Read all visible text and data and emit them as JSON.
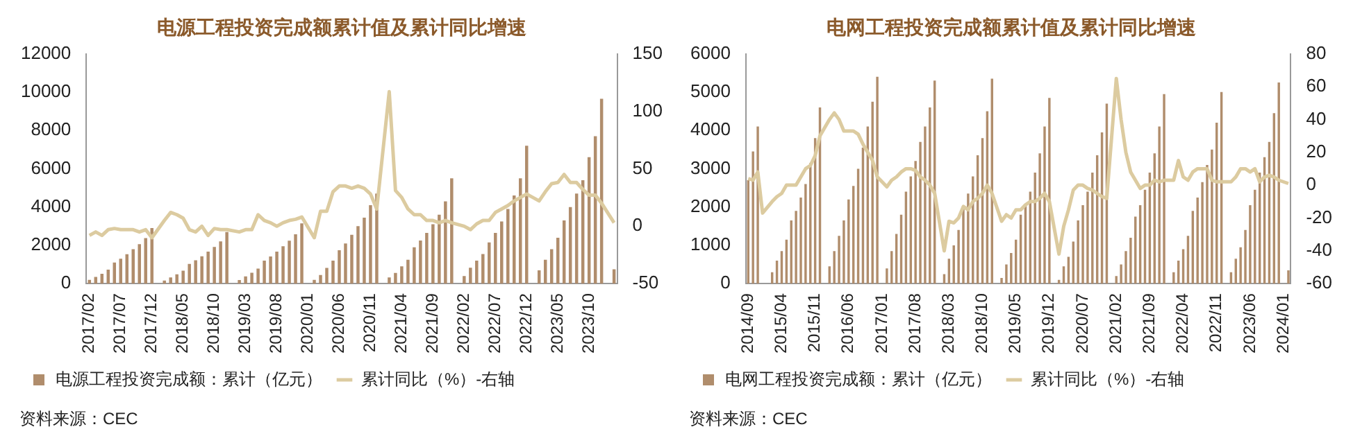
{
  "chart_data": [
    {
      "type": "bar",
      "title": "电源工程投资完成额累计值及累计同比增速",
      "legend": "bottom",
      "grid": false,
      "categories": [
        "2017/02",
        null,
        null,
        null,
        null,
        "2017/07",
        null,
        null,
        null,
        null,
        "2017/12",
        null,
        null,
        null,
        null,
        "2018/05",
        null,
        null,
        null,
        null,
        "2018/10",
        null,
        null,
        null,
        null,
        "2019/03",
        null,
        null,
        null,
        null,
        "2019/08",
        null,
        null,
        null,
        null,
        "2020/01",
        null,
        null,
        null,
        null,
        "2020/06",
        null,
        null,
        null,
        null,
        "2020/11",
        null,
        null,
        null,
        null,
        "2021/04",
        null,
        null,
        null,
        null,
        "2021/09",
        null,
        null,
        null,
        null,
        "2022/02",
        null,
        null,
        null,
        null,
        "2022/07",
        null,
        null,
        null,
        null,
        "2022/12",
        null,
        null,
        null,
        null,
        "2023/05",
        null,
        null,
        null,
        null,
        "2023/10",
        null,
        null,
        null,
        null
      ],
      "ylim": [
        0,
        12000
      ],
      "yticks": [
        0,
        2000,
        4000,
        6000,
        8000,
        10000,
        12000
      ],
      "y2lim": [
        -50,
        150
      ],
      "y2ticks": [
        -50,
        0,
        50,
        100,
        150
      ],
      "series": [
        {
          "name": "电源工程投资完成额：累计（亿元）",
          "color": "#b08d6c",
          "values": [
            200,
            350,
            520,
            730,
            1100,
            1300,
            1540,
            1800,
            2060,
            2380,
            2900,
            null,
            160,
            330,
            490,
            680,
            1030,
            1220,
            1430,
            1670,
            1920,
            2210,
            2700,
            null,
            190,
            380,
            570,
            790,
            1200,
            1420,
            1670,
            1950,
            2240,
            2580,
            3150,
            null,
            200,
            450,
            820,
            1200,
            1750,
            2100,
            2550,
            3000,
            3450,
            4100,
            4700,
            null,
            330,
            560,
            900,
            1250,
            1900,
            2250,
            2650,
            3100,
            3600,
            4300,
            5500,
            null,
            400,
            830,
            1200,
            1550,
            2150,
            2650,
            3250,
            3900,
            4600,
            5500,
            7200,
            null,
            700,
            1250,
            1800,
            2400,
            3300,
            4000,
            4700,
            5400,
            6600,
            7700,
            9650,
            null,
            750
          ]
        },
        {
          "name": "累计同比（%）-右轴",
          "type": "line",
          "axis": "y2",
          "color": "#dccba0",
          "marker": "none",
          "values": [
            -8,
            -5,
            -8,
            -3,
            -2,
            -3,
            -3,
            -3,
            -5,
            -3,
            -10,
            null,
            5,
            12,
            10,
            7,
            -3,
            -5,
            0,
            -8,
            -2,
            -3,
            -3,
            null,
            -5,
            -3,
            -3,
            10,
            5,
            3,
            0,
            3,
            5,
            6,
            8,
            null,
            -10,
            13,
            13,
            30,
            35,
            35,
            33,
            35,
            33,
            28,
            15,
            null,
            117,
            31,
            25,
            15,
            10,
            10,
            5,
            5,
            3,
            5,
            3,
            null,
            0,
            -3,
            2,
            5,
            5,
            12,
            15,
            18,
            22,
            25,
            28,
            null,
            22,
            30,
            37,
            38,
            45,
            38,
            38,
            32,
            27,
            27,
            20,
            null,
            3
          ]
        }
      ],
      "annotations": [
        "资料来源：CEC"
      ]
    },
    {
      "type": "bar",
      "title": "电网工程投资完成额累计值及累计同比增速",
      "legend": "bottom",
      "grid": false,
      "categories": [
        "2014/09",
        null,
        null,
        null,
        null,
        null,
        null,
        "2015/04",
        null,
        null,
        null,
        null,
        null,
        null,
        "2015/11",
        null,
        null,
        null,
        null,
        null,
        null,
        "2016/06",
        null,
        null,
        null,
        null,
        null,
        null,
        "2017/01",
        null,
        null,
        null,
        null,
        null,
        null,
        "2017/08",
        null,
        null,
        null,
        null,
        null,
        null,
        "2018/03",
        null,
        null,
        null,
        null,
        null,
        null,
        "2018/10",
        null,
        null,
        null,
        null,
        null,
        null,
        "2019/05",
        null,
        null,
        null,
        null,
        null,
        null,
        "2019/12",
        null,
        null,
        null,
        null,
        null,
        null,
        "2020/07",
        null,
        null,
        null,
        null,
        null,
        null,
        "2021/02",
        null,
        null,
        null,
        null,
        null,
        null,
        "2021/09",
        null,
        null,
        null,
        null,
        null,
        null,
        "2022/04",
        null,
        null,
        null,
        null,
        null,
        null,
        "2022/11",
        null,
        null,
        null,
        null,
        null,
        null,
        "2023/06",
        null,
        null,
        null,
        null,
        null,
        null,
        "2024/01",
        null
      ],
      "ylim": [
        0,
        6000
      ],
      "yticks": [
        0,
        1000,
        2000,
        3000,
        4000,
        5000,
        6000
      ],
      "y2lim": [
        -60,
        80
      ],
      "y2ticks": [
        -60,
        -40,
        -20,
        0,
        20,
        40,
        60,
        80
      ],
      "series": [
        {
          "name": "电网工程投资完成额：累计（亿元）",
          "color": "#b08d6c",
          "values": [
            2700,
            3450,
            4100,
            null,
            null,
            300,
            600,
            850,
            1150,
            1650,
            1900,
            2250,
            2600,
            3150,
            3800,
            4600,
            null,
            450,
            850,
            1250,
            1650,
            2200,
            2550,
            3000,
            3550,
            4100,
            4750,
            5400,
            null,
            400,
            850,
            1300,
            1800,
            2400,
            2800,
            3200,
            3700,
            4100,
            4600,
            5300,
            null,
            250,
            650,
            1000,
            1400,
            2000,
            2350,
            2800,
            3350,
            3800,
            4500,
            5350,
            null,
            150,
            500,
            800,
            1150,
            1800,
            2050,
            2400,
            2900,
            3400,
            4100,
            4850,
            null,
            100,
            450,
            700,
            1100,
            1650,
            2050,
            2400,
            2900,
            3350,
            3950,
            4700,
            null,
            200,
            500,
            850,
            1200,
            1750,
            2050,
            2450,
            2900,
            3400,
            4100,
            4950,
            null,
            300,
            600,
            900,
            1250,
            1900,
            2250,
            2650,
            3100,
            3500,
            4200,
            5000,
            null,
            300,
            650,
            950,
            1400,
            2050,
            2450,
            2900,
            3300,
            3700,
            4450,
            5250,
            null,
            350
          ]
        },
        {
          "name": "累计同比（%）-右轴",
          "type": "line",
          "axis": "y2",
          "color": "#dccba0",
          "marker": "none",
          "values": [
            4,
            3,
            8,
            -17,
            null,
            -10,
            -7,
            -5,
            0,
            0,
            0,
            5,
            10,
            12,
            18,
            30,
            null,
            40,
            44,
            40,
            33,
            33,
            33,
            31,
            25,
            20,
            15,
            5,
            null,
            -1,
            3,
            5,
            8,
            10,
            10,
            9,
            5,
            3,
            0,
            -5,
            null,
            -40,
            -22,
            -23,
            -20,
            -13,
            -15,
            -10,
            -8,
            -5,
            0,
            -5,
            null,
            -22,
            -18,
            -20,
            -15,
            -15,
            -12,
            -10,
            -10,
            -8,
            -5,
            -10,
            null,
            -42,
            -25,
            -15,
            -3,
            0,
            0,
            -2,
            -3,
            -5,
            -7,
            -8,
            null,
            65,
            40,
            20,
            8,
            3,
            -2,
            0,
            0,
            3,
            2,
            3,
            null,
            3,
            15,
            5,
            3,
            8,
            10,
            10,
            10,
            3,
            2,
            2,
            null,
            2,
            5,
            10,
            10,
            8,
            10,
            2,
            5,
            6,
            5,
            3,
            null,
            1
          ]
        }
      ],
      "annotations": [
        "资料来源：CEC"
      ]
    }
  ]
}
